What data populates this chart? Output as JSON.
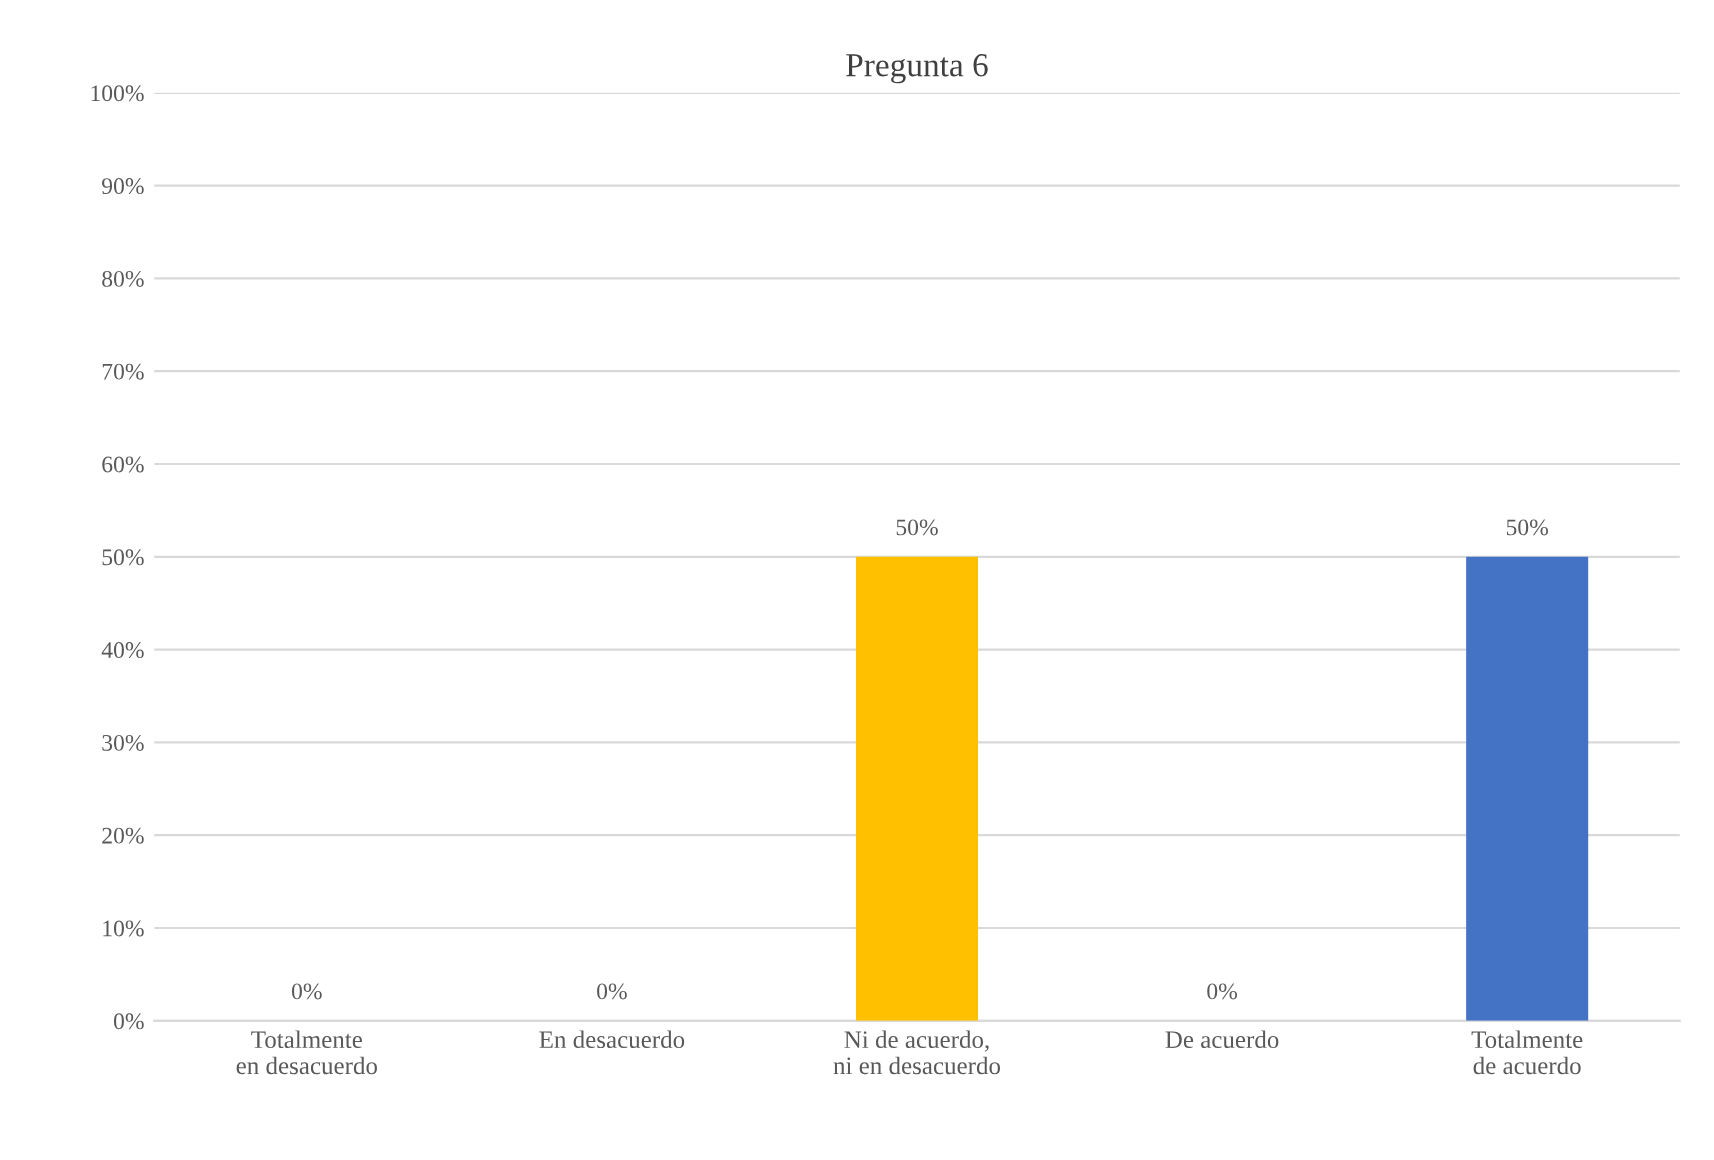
{
  "chart_data": {
    "type": "bar",
    "title": "Pregunta 6",
    "categories": [
      "Totalmente en desacuerdo",
      "En desacuerdo",
      "Ni de acuerdo, ni en desacuerdo",
      "De acuerdo",
      "Totalmente de acuerdo"
    ],
    "values": [
      0,
      0,
      50,
      0,
      50
    ],
    "colors": [
      "#4472c4",
      "#ed7d31",
      "#ffc000",
      "#a5a5a5",
      "#4472c4"
    ],
    "value_labels": [
      "0%",
      "0%",
      "50%",
      "0%",
      "50%"
    ],
    "ylim": [
      0,
      100
    ],
    "yticks": [
      {
        "value": 0,
        "label": "0%"
      },
      {
        "value": 10,
        "label": "10%"
      },
      {
        "value": 20,
        "label": "20%"
      },
      {
        "value": 30,
        "label": "30%"
      },
      {
        "value": 40,
        "label": "40%"
      },
      {
        "value": 50,
        "label": "50%"
      },
      {
        "value": 60,
        "label": "60%"
      },
      {
        "value": 70,
        "label": "70%"
      },
      {
        "value": 80,
        "label": "80%"
      },
      {
        "value": 90,
        "label": "90%"
      },
      {
        "value": 100,
        "label": "100%"
      }
    ],
    "grid": "y",
    "legend": false
  }
}
